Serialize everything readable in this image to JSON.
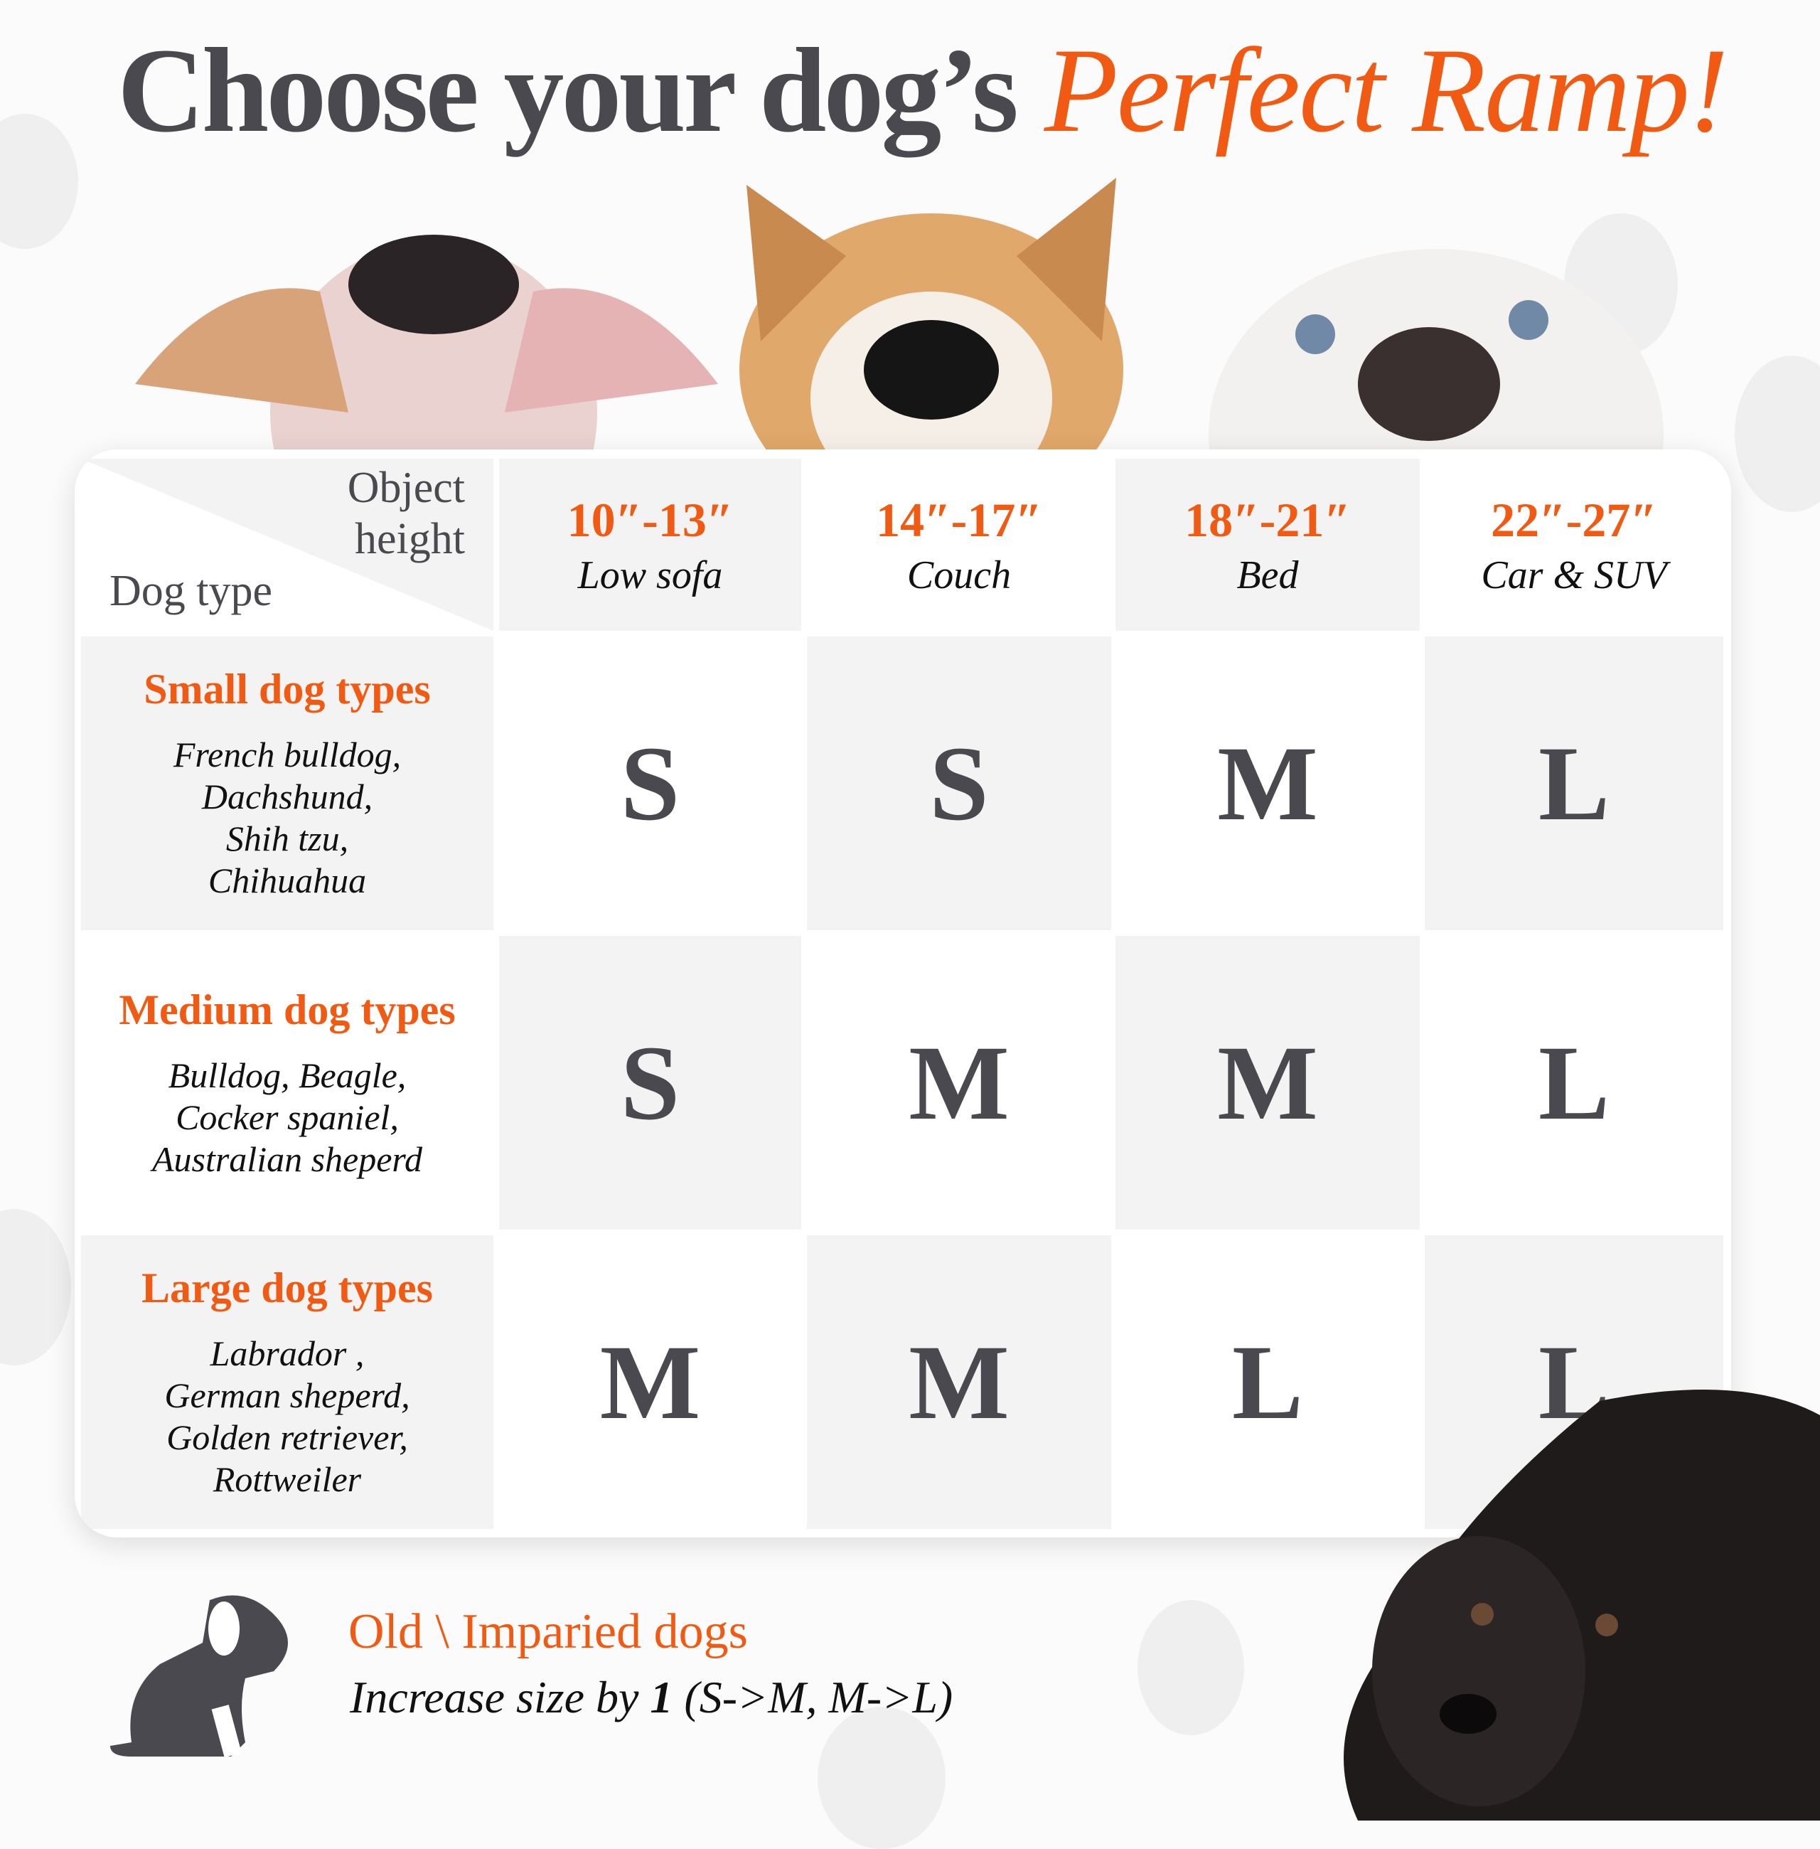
{
  "title": {
    "main": "Choose your dog’s",
    "accent": "Perfect Ramp!"
  },
  "colors": {
    "accent": "#f15a12",
    "text": "#4a4950",
    "cell_gray": "#f3f3f3"
  },
  "table": {
    "corner": {
      "top": "Object height",
      "bottom": "Dog type"
    },
    "columns": [
      {
        "range": "10″-13″",
        "object": "Low sofa"
      },
      {
        "range": "14″-17″",
        "object": "Couch"
      },
      {
        "range": "18″-21″",
        "object": "Bed"
      },
      {
        "range": "22″-27″",
        "object": "Car & SUV"
      }
    ],
    "rows": [
      {
        "category": "Small dog types",
        "breeds": [
          "French bulldog,",
          "Dachshund,",
          "Shih tzu,",
          "Chihuahua"
        ],
        "sizes": [
          "S",
          "S",
          "M",
          "L"
        ]
      },
      {
        "category": "Medium dog types",
        "breeds": [
          "Bulldog, Beagle,",
          "Cocker spaniel,",
          "Australian sheperd"
        ],
        "sizes": [
          "S",
          "M",
          "M",
          "L"
        ]
      },
      {
        "category": "Large dog types",
        "breeds": [
          "Labrador ,",
          "German sheperd,",
          "Golden retriever,",
          "Rottweiler"
        ],
        "sizes": [
          "M",
          "M",
          "L",
          "L"
        ]
      }
    ]
  },
  "note": {
    "title": "Old \\ Imparied dogs",
    "text_prefix": "Increase size by ",
    "text_bold": "1",
    "text_suffix": " (S->M, M->L)",
    "icon": "sitting-dog-icon"
  }
}
